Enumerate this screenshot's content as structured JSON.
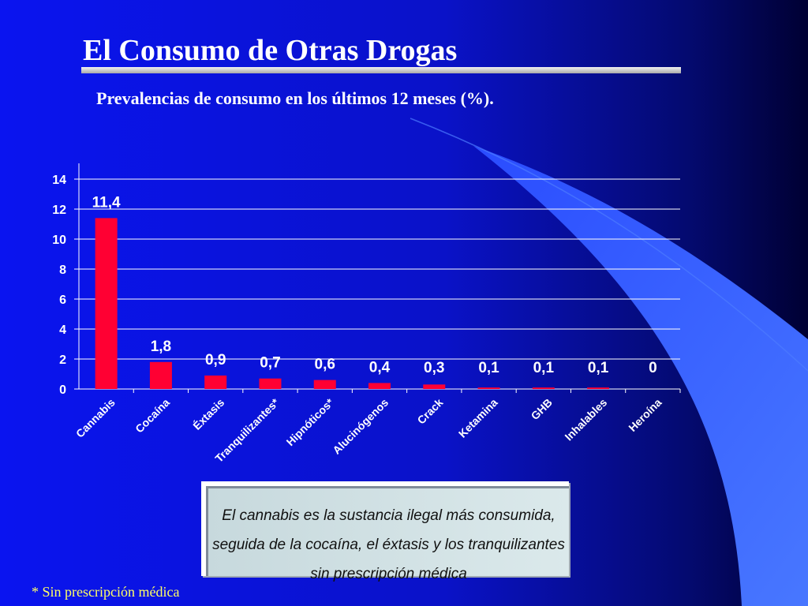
{
  "slide": {
    "title": "El Consumo de Otras Drogas",
    "subtitle": "Prevalencias de consumo en los últimos 12 meses (%).",
    "callout": "El cannabis es la sustancia ilegal más consumida, seguida de la cocaína, el éxtasis y los tranquilizantes sin prescripción médica",
    "footnote": "* Sin prescripción médica"
  },
  "colors": {
    "bar": "#ff0033",
    "background_left": "#0a14f0",
    "background_right": "#000033",
    "accent_swoosh": "#3c6bff",
    "footnote": "#ffff66"
  },
  "chart_data": {
    "type": "bar",
    "title": "",
    "xlabel": "",
    "ylabel": "",
    "categories": [
      "Cannabis",
      "Cocaína",
      "Éxtasis",
      "Tranquilizantes*",
      "Hipnóticos*",
      "Alucinógenos",
      "Crack",
      "Ketamina",
      "GHB",
      "Inhalables",
      "Heroína"
    ],
    "values": [
      11.4,
      1.8,
      0.9,
      0.7,
      0.6,
      0.4,
      0.3,
      0.1,
      0.1,
      0.1,
      0
    ],
    "value_labels": [
      "11,4",
      "1,8",
      "0,9",
      "0,7",
      "0,6",
      "0,4",
      "0,3",
      "0,1",
      "0,1",
      "0,1",
      "0"
    ],
    "y_ticks": [
      0,
      2,
      4,
      6,
      8,
      10,
      12,
      14
    ],
    "ylim": [
      0,
      14
    ],
    "grid": true,
    "legend": "none"
  }
}
